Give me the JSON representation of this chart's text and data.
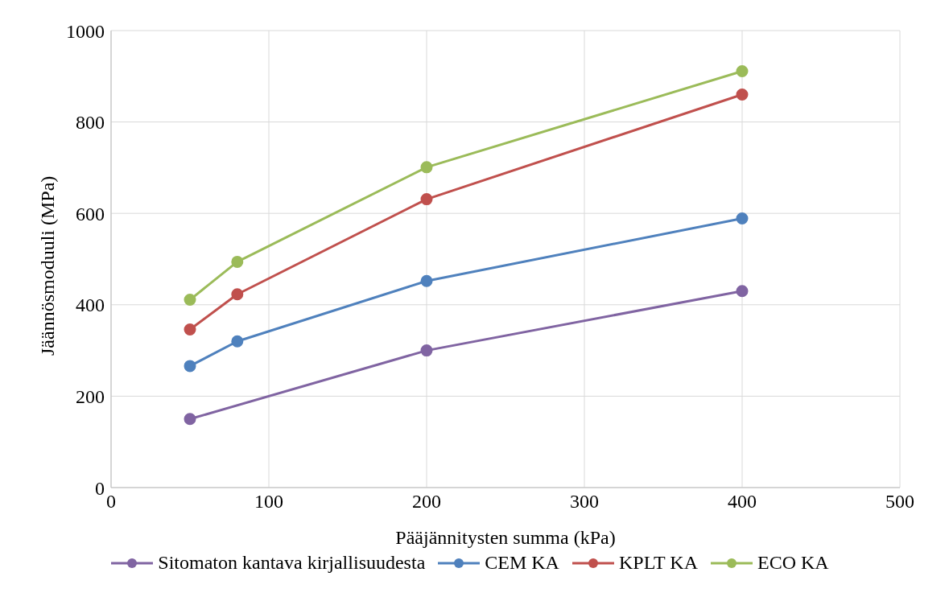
{
  "chart_data": {
    "type": "line",
    "xlabel": "Pääjännitysten summa (kPa)",
    "ylabel": "Jäännösmoduuli (MPa)",
    "x": [
      50,
      80,
      200,
      400
    ],
    "series": [
      {
        "name": "Sitomaton kantava kirjallisuudesta",
        "color": "#8064a2",
        "x": [
          50,
          200,
          400
        ],
        "values": [
          150,
          300,
          430
        ]
      },
      {
        "name": "CEM KA",
        "color": "#4f81bd",
        "values": [
          266,
          320,
          452,
          589
        ]
      },
      {
        "name": "KPLT KA",
        "color": "#c0504d",
        "values": [
          346,
          423,
          631,
          860
        ]
      },
      {
        "name": "ECO KA",
        "color": "#9bbb59",
        "values": [
          411,
          494,
          701,
          911
        ]
      }
    ],
    "xlim": [
      0,
      500
    ],
    "xticks": [
      0,
      100,
      200,
      300,
      400,
      500
    ],
    "ylim": [
      0,
      1000
    ],
    "yticks": [
      0,
      200,
      400,
      600,
      800,
      1000
    ],
    "grid": true,
    "legend": "bottom",
    "marker": "circle",
    "line_style": "solid"
  }
}
